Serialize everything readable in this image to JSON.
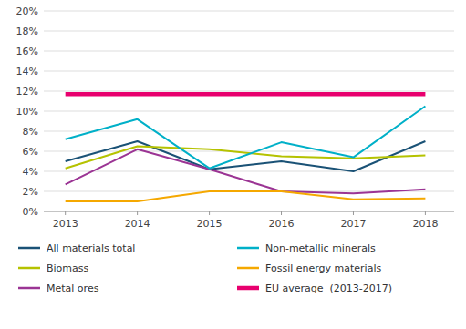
{
  "chart_data": {
    "type": "line",
    "x": [
      2013,
      2014,
      2015,
      2016,
      2017,
      2018
    ],
    "series": [
      {
        "name": "All materials total",
        "color": "#1a5276",
        "values": [
          5.0,
          7.0,
          4.2,
          5.0,
          4.0,
          7.0
        ]
      },
      {
        "name": "Biomass",
        "color": "#b5c200",
        "values": [
          4.3,
          6.5,
          6.2,
          5.5,
          5.3,
          5.6
        ]
      },
      {
        "name": "Metal ores",
        "color": "#9b3494",
        "values": [
          2.7,
          6.2,
          4.2,
          2.0,
          1.8,
          2.2
        ]
      },
      {
        "name": "Non-metallic minerals",
        "color": "#00b0c8",
        "values": [
          7.2,
          9.2,
          4.3,
          6.9,
          5.4,
          10.5
        ]
      },
      {
        "name": "Fossil energy materials",
        "color": "#f5a800",
        "values": [
          1.0,
          1.0,
          2.0,
          2.0,
          1.2,
          1.3
        ]
      },
      {
        "name": "EU average  (2013-2017)",
        "color": "#e8006e",
        "type": "hline",
        "value": 11.7,
        "x": [
          2013,
          2018
        ]
      }
    ],
    "xlim": [
      2012.7,
      2018.4
    ],
    "xticks": [
      2013,
      2014,
      2015,
      2016,
      2017,
      2018
    ],
    "ylim": [
      0,
      20
    ],
    "yticks": [
      {
        "value": 0,
        "label": "0%"
      },
      {
        "value": 2,
        "label": "2%"
      },
      {
        "value": 4,
        "label": "4%"
      },
      {
        "value": 6,
        "label": "6%"
      },
      {
        "value": 8,
        "label": "8%"
      },
      {
        "value": 10,
        "label": "10%"
      },
      {
        "value": 12,
        "label": "12%"
      },
      {
        "value": 14,
        "label": "14%"
      },
      {
        "value": 16,
        "label": "16%"
      },
      {
        "value": 18,
        "label": "18%"
      },
      {
        "value": 20,
        "label": "20%"
      }
    ],
    "grid": true,
    "legend": "bottom"
  }
}
